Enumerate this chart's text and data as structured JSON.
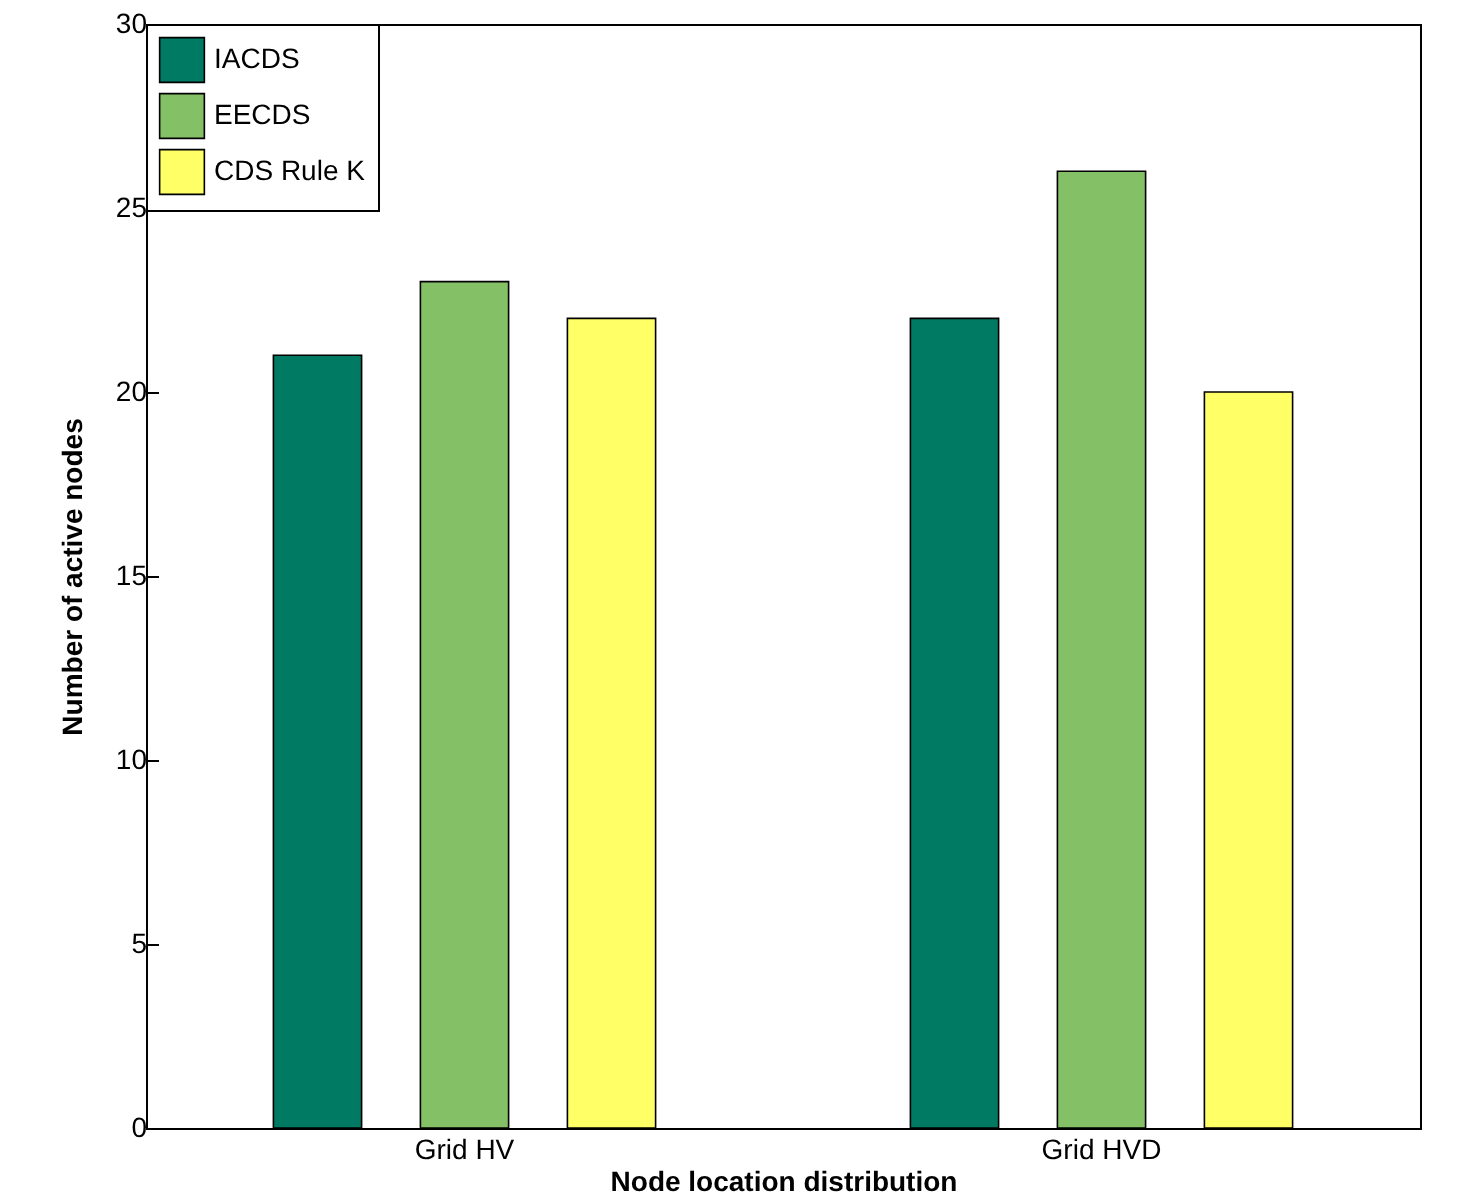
{
  "chart_data": {
    "type": "bar",
    "xlabel": "Node location distribution",
    "ylabel": "Number of active nodes",
    "categories": [
      "Grid HV",
      "Grid HVD"
    ],
    "series": [
      {
        "name": "IACDS",
        "color": "#007a63",
        "values": [
          21,
          22
        ]
      },
      {
        "name": "EECDS",
        "color": "#84c065",
        "values": [
          23,
          26
        ]
      },
      {
        "name": "CDS Rule K",
        "color": "#ffff66",
        "values": [
          22,
          20
        ]
      }
    ],
    "ylim": [
      0,
      30
    ],
    "yticks": [
      0,
      5,
      10,
      15,
      20,
      25,
      30
    ],
    "legend": "top left"
  }
}
